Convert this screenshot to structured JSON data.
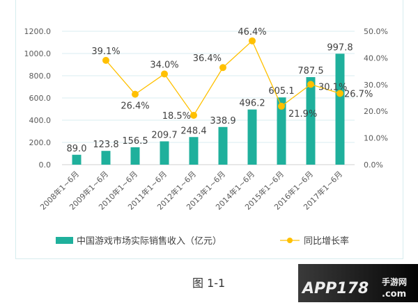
{
  "chart_data": {
    "type": "bar+line",
    "categories": [
      "2008年1~6月",
      "2009年1~6月",
      "2010年1~6月",
      "2011年1~6月",
      "2012年1~6月",
      "2013年1~6月",
      "2014年1~6月",
      "2015年1~6月",
      "2016年1~6月",
      "2017年1~6月"
    ],
    "series": [
      {
        "name": "中国游戏市场实际销售收入（亿元）",
        "type": "bar",
        "axis": "left",
        "color": "#1fb09c",
        "values": [
          89.0,
          123.8,
          156.5,
          209.7,
          248.4,
          338.9,
          496.2,
          605.1,
          787.5,
          997.8
        ],
        "labels": [
          "89.0",
          "123.8",
          "156.5",
          "209.7",
          "248.4",
          "338.9",
          "496.2",
          "605.1",
          "787.5",
          "997.8"
        ]
      },
      {
        "name": "同比增长率",
        "type": "line",
        "axis": "right",
        "color": "#ffc000",
        "values": [
          null,
          39.1,
          26.4,
          34.0,
          18.5,
          36.4,
          46.4,
          21.9,
          30.1,
          26.7
        ],
        "labels": [
          "",
          "39.1%",
          "26.4%",
          "34.0%",
          "18.5%",
          "36.4%",
          "46.4%",
          "21.9%",
          "30.1%",
          "26.7%"
        ]
      }
    ],
    "ylim_left": [
      0,
      1200
    ],
    "yticks_left": [
      "0.0",
      "200.0",
      "400.0",
      "600.0",
      "800.0",
      "1000.0",
      "1200.0"
    ],
    "ylim_right": [
      0,
      50
    ],
    "yticks_right": [
      "0.0%",
      "10.0%",
      "20.0%",
      "30.0%",
      "40.0%",
      "50.0%"
    ],
    "grid": true,
    "legend": "bottom"
  },
  "caption": "图 1-1",
  "watermark": "APP178手游网.com"
}
